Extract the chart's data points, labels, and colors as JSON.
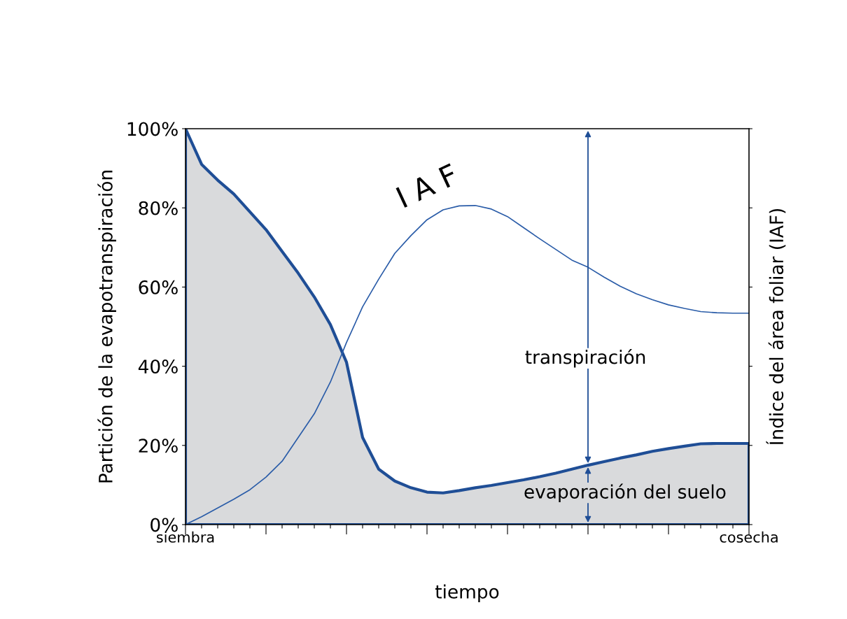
{
  "chart_data": {
    "type": "area",
    "xlabel": "tiempo",
    "ylabel": "Partición de la evapotranspiración",
    "y2label": "Índice del área foliar (IAF)",
    "categories": [
      "siembra",
      null,
      null,
      null,
      null,
      null,
      null,
      null,
      null,
      null,
      null,
      null,
      null,
      null,
      null,
      null,
      null,
      null,
      null,
      null,
      null,
      null,
      null,
      null,
      null,
      null,
      null,
      null,
      null,
      null,
      null,
      null,
      null,
      null,
      null,
      "cosecha"
    ],
    "ylim": [
      0,
      100
    ],
    "yticks": [
      {
        "value": 0,
        "label": "0%"
      },
      {
        "value": 20,
        "label": "20%"
      },
      {
        "value": 40,
        "label": "40%"
      },
      {
        "value": 60,
        "label": "60%"
      },
      {
        "value": 80,
        "label": "80%"
      },
      {
        "value": 100,
        "label": "100%"
      }
    ],
    "grid": false,
    "legend": false,
    "series": [
      {
        "color": "#1f4e96",
        "values": [
          100,
          91,
          87,
          83.5,
          79,
          74.5,
          69,
          63.5,
          57.5,
          50.5,
          41,
          22,
          14,
          11,
          9.3,
          8.2,
          8.0,
          8.6,
          9.3,
          9.9,
          10.6,
          11.3,
          12.1,
          13,
          14,
          15,
          15.9,
          16.8,
          17.6,
          18.5,
          19.2,
          19.8,
          20.4,
          20.5,
          20.5,
          20.5
        ]
      },
      {
        "type": "line",
        "color": "#2a5ca8",
        "values": [
          0,
          2,
          4.2,
          6.4,
          8.8,
          12,
          16,
          22,
          28,
          36,
          46,
          55,
          62,
          68.5,
          73,
          77,
          79.5,
          80.5,
          80.6,
          79.7,
          77.8,
          75,
          72.2,
          69.5,
          66.8,
          65,
          62.5,
          60.2,
          58.3,
          56.8,
          55.5,
          54.6,
          53.8,
          53.5,
          53.4,
          53.4
        ]
      }
    ],
    "annotations": [
      "I A F",
      "transpiración",
      "evaporación del suelo"
    ]
  }
}
